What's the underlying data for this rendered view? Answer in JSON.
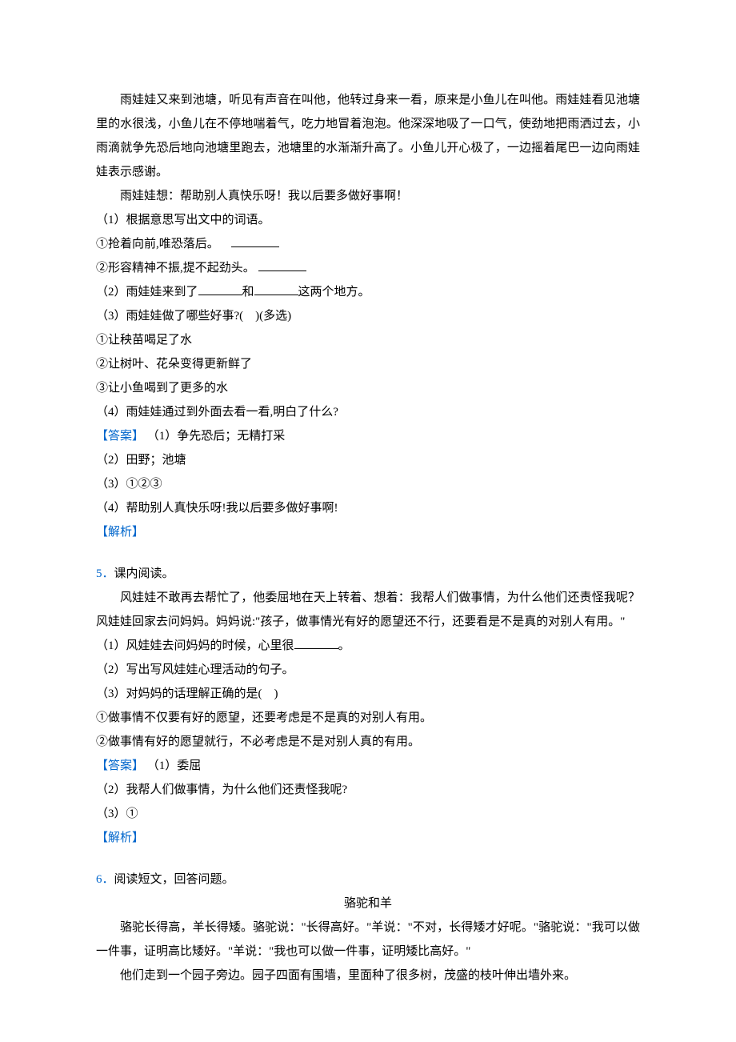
{
  "colors": {
    "text": "#000000",
    "accent": "#0066cc",
    "background": "#ffffff"
  },
  "typography": {
    "font_family": "SimSun",
    "font_size_pt": 11,
    "line_height": 2.0
  },
  "q4": {
    "passage1": "雨娃娃又来到池塘，听见有声音在叫他，他转过身来一看，原来是小鱼儿在叫他。雨娃娃看见池塘里的水很浅，小鱼儿在不停地喘着气，吃力地冒着泡泡。他深深地吸了一口气，使劲地把雨洒过去，小雨滴就争先恐后地向池塘里跑去，池塘里的水渐渐升高了。小鱼儿开心极了，一边摇着尾巴一边向雨娃娃表示感谢。",
    "passage2": "雨娃娃想：帮助别人真快乐呀！我以后要多做好事啊！",
    "sub1": "（1）根据意思写出文中的词语。",
    "sub1_1": "①抢着向前,唯恐落后。",
    "sub1_2": "②形容精神不振,提不起劲头。",
    "sub2_a": "（2）雨娃娃来到了",
    "sub2_b": "和",
    "sub2_c": "这两个地方。",
    "sub3": "（3）雨娃娃做了哪些好事?(　)(多选)",
    "sub3_1": "①让秧苗喝足了水",
    "sub3_2": "②让树叶、花朵变得更新鲜了",
    "sub3_3": "③让小鱼喝到了更多的水",
    "sub4": "（4）雨娃娃通过到外面去看一看,明白了什么?",
    "ans_label": "【答案】",
    "ans1": "（1）争先恐后；无精打采",
    "ans2": "（2）田野；池塘",
    "ans3": "（3）①②③",
    "ans4": "（4）帮助别人真快乐呀!我以后要多做好事啊!",
    "exp_label": "【解析】"
  },
  "q5": {
    "num": "5．",
    "title": "课内阅读。",
    "passage": "风娃娃不敢再去帮忙了，他委屈地在天上转着、想着：我帮人们做事情，为什么他们还责怪我呢？风娃娃回家去问妈妈。妈妈说:\"孩子，做事情光有好的愿望还不行，还要看是不是真的对别人有用。\"",
    "sub1_a": "（1）风娃娃去问妈妈的时候，心里很",
    "sub1_b": "。",
    "sub2": "（2）写出写风娃娃心理活动的句子。",
    "sub3": "（3）对妈妈的话理解正确的是(　)",
    "sub3_1": "①做事情不仅要有好的愿望，还要考虑是不是真的对别人有用。",
    "sub3_2": "②做事情有好的愿望就行，不必考虑是不是对别人真的有用。",
    "ans_label": "【答案】",
    "ans1": "（1）委屈",
    "ans2": "（2）我帮人们做事情，为什么他们还责怪我呢?",
    "ans3": "（3）①",
    "exp_label": "【解析】"
  },
  "q6": {
    "num": "6．",
    "title": "阅读短文，回答问题。",
    "heading": "骆驼和羊",
    "passage1": "骆驼长得高，羊长得矮。骆驼说：\"长得高好。\"羊说：\"不对，长得矮才好呢。\"骆驼说：\"我可以做一件事，证明高比矮好。\"羊说：\"我也可以做一件事，证明矮比高好。\"",
    "passage2": "他们走到一个园子旁边。园子四面有围墙，里面种了很多树，茂盛的枝叶伸出墙外来。"
  }
}
